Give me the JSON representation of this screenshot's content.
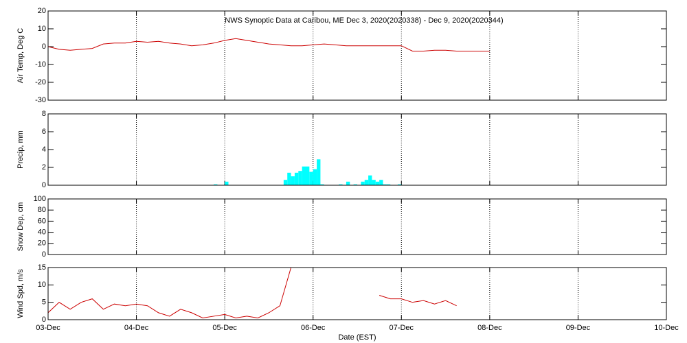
{
  "chart_data": [
    {
      "type": "line",
      "title": "NWS Synoptic Data at Caribou, ME   Dec  3, 2020(2020338) - Dec  9, 2020(2020344)",
      "y_label": "Air Temp, Deg C",
      "x": [
        0,
        3,
        6,
        9,
        12,
        15,
        18,
        21,
        24,
        27,
        30,
        33,
        36,
        39,
        42,
        45,
        48,
        51,
        54,
        57,
        60,
        63,
        66,
        69,
        72,
        75,
        78,
        81,
        84,
        87,
        90,
        93,
        96,
        99,
        102,
        105,
        108,
        111,
        114,
        117,
        120
      ],
      "values": [
        0,
        -1.5,
        -2,
        -1.5,
        -1,
        1.5,
        2,
        2,
        3,
        2.5,
        3,
        2,
        1.5,
        0.5,
        1,
        2,
        3.5,
        4.5,
        3.5,
        2.5,
        1.5,
        1,
        0.5,
        0.5,
        1,
        1.5,
        1,
        0.5,
        0.5,
        0.5,
        0.5,
        0.5,
        0.5,
        -2.5,
        -2.5,
        -2,
        -2,
        -2.5,
        -2.5,
        -2.5,
        -2.5
      ],
      "color": "#cc0000",
      "xlim": [
        0,
        168
      ],
      "xticks": [
        0,
        24,
        48,
        72,
        96,
        120,
        144,
        168
      ],
      "ylim": [
        -30,
        20
      ],
      "yticks": [
        -30,
        -20,
        -10,
        0,
        10,
        20
      ],
      "grid": true
    },
    {
      "type": "bar",
      "y_label": "Precip, mm",
      "x": [
        45,
        48,
        64,
        65,
        66,
        67,
        68,
        69,
        70,
        71,
        72,
        73,
        74,
        79,
        81,
        83,
        85,
        86,
        87,
        88,
        89,
        90,
        91,
        92,
        95
      ],
      "values": [
        0.1,
        0.4,
        0.6,
        1.4,
        1,
        1.4,
        1.6,
        2.1,
        2.1,
        1.5,
        1.8,
        2.9,
        0.1,
        0.1,
        0.4,
        0.1,
        0.4,
        0.6,
        1.1,
        0.6,
        0.4,
        0.6,
        0.1,
        0.1,
        0.1
      ],
      "color": "#00ffff",
      "xlim": [
        0,
        168
      ],
      "xticks": [
        0,
        24,
        48,
        72,
        96,
        120,
        144,
        168
      ],
      "ylim": [
        0,
        8
      ],
      "yticks": [
        0,
        2,
        4,
        6,
        8
      ],
      "grid": true
    },
    {
      "type": "line",
      "y_label": "Snow Dep, cm",
      "xlim": [
        0,
        168
      ],
      "xticks": [
        0,
        24,
        48,
        72,
        96,
        120,
        144,
        168
      ],
      "ylim": [
        0,
        100
      ],
      "yticks": [
        0,
        20,
        40,
        60,
        80,
        100
      ],
      "grid": true
    },
    {
      "type": "line",
      "y_label": "Wind Spd, m/s",
      "x_label": "Date (EST)",
      "x": [
        0,
        3,
        6,
        9,
        12,
        15,
        18,
        21,
        24,
        27,
        30,
        33,
        36,
        39,
        42,
        45,
        48,
        51,
        54,
        57,
        60,
        63,
        66,
        69,
        72,
        75,
        78,
        81,
        84,
        87,
        90,
        93,
        96,
        99,
        102,
        105,
        108,
        111
      ],
      "values": [
        2,
        5,
        3,
        5,
        6,
        3,
        4.5,
        4,
        4.5,
        4,
        2,
        1,
        3,
        2,
        0.5,
        1,
        1.5,
        0.5,
        1,
        0.5,
        2,
        4,
        15,
        null,
        null,
        null,
        null,
        null,
        null,
        null,
        7,
        6,
        6,
        5,
        5.5,
        4.5,
        5.5,
        4
      ],
      "color": "#cc0000",
      "xlim": [
        0,
        168
      ],
      "xticks": [
        {
          "value": 0,
          "label": "03-Dec"
        },
        {
          "value": 24,
          "label": "04-Dec"
        },
        {
          "value": 48,
          "label": "05-Dec"
        },
        {
          "value": 72,
          "label": "06-Dec"
        },
        {
          "value": 96,
          "label": "07-Dec"
        },
        {
          "value": 120,
          "label": "08-Dec"
        },
        {
          "value": 144,
          "label": "09-Dec"
        },
        {
          "value": 168,
          "label": "10-Dec"
        }
      ],
      "ylim": [
        0,
        15
      ],
      "yticks": [
        0,
        5,
        10,
        15
      ],
      "grid": true
    }
  ]
}
